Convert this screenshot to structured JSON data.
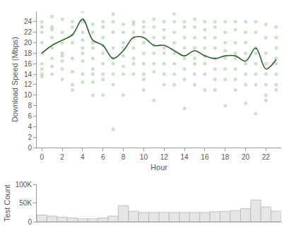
{
  "chart_data": [
    {
      "type": "scatter",
      "y_label": "Download Speed (Mbps)",
      "x_label": "Hour",
      "xlim": [
        -0.5,
        23.5
      ],
      "xticks": [
        0,
        2,
        4,
        6,
        8,
        10,
        12,
        14,
        16,
        18,
        20,
        22
      ],
      "ylim": [
        0,
        26
      ],
      "yticks": [
        0,
        2,
        4,
        6,
        8,
        10,
        12,
        14,
        16,
        18,
        20,
        22,
        24
      ],
      "grid": false,
      "series": [
        {
          "type": "scatter",
          "marker": "circle",
          "color": "#6aa86a",
          "x": [
            0,
            0,
            0,
            0,
            0,
            0,
            0,
            0,
            0,
            1,
            1,
            1,
            1,
            1,
            1,
            1,
            1,
            2,
            2,
            2,
            2,
            2,
            2,
            2,
            2,
            3,
            3,
            3,
            3,
            3,
            3,
            3,
            3,
            4,
            4,
            4,
            4,
            4,
            4,
            4,
            4,
            4,
            5,
            5,
            5,
            5,
            5,
            5,
            5,
            5,
            5,
            6,
            6,
            6,
            6,
            6,
            6,
            6,
            6,
            6,
            7,
            7,
            7,
            7,
            7,
            7,
            7,
            7,
            7,
            8,
            8,
            8,
            8,
            8,
            8,
            8,
            8,
            9,
            9,
            9,
            9,
            9,
            9,
            9,
            9,
            10,
            10,
            10,
            10,
            10,
            10,
            10,
            10,
            10,
            11,
            11,
            11,
            11,
            11,
            11,
            11,
            11,
            12,
            12,
            12,
            12,
            12,
            12,
            12,
            12,
            13,
            13,
            13,
            13,
            13,
            13,
            13,
            13,
            14,
            14,
            14,
            14,
            14,
            14,
            14,
            14,
            15,
            15,
            15,
            15,
            15,
            15,
            15,
            15,
            16,
            16,
            16,
            16,
            16,
            16,
            16,
            16,
            17,
            17,
            17,
            17,
            17,
            17,
            17,
            17,
            18,
            18,
            18,
            18,
            18,
            18,
            18,
            18,
            19,
            19,
            19,
            19,
            19,
            19,
            19,
            19,
            20,
            20,
            20,
            20,
            20,
            20,
            20,
            20,
            21,
            21,
            21,
            21,
            21,
            21,
            21,
            21,
            22,
            22,
            22,
            22,
            22,
            22,
            22,
            22,
            23,
            23,
            23,
            23,
            23,
            23,
            23,
            23
          ],
          "values": [
            24,
            23,
            22,
            20,
            18,
            16,
            15,
            14,
            13.5,
            25,
            23,
            22.5,
            21,
            19,
            17,
            15.5,
            14,
            24.5,
            22,
            20,
            18,
            17.5,
            16.5,
            15,
            13,
            24,
            23,
            21.5,
            20,
            17,
            14.5,
            12,
            11,
            26,
            24,
            22,
            20.5,
            19,
            18,
            16.5,
            14,
            12.5,
            23.5,
            22,
            20,
            19,
            17,
            15,
            14,
            12.5,
            10,
            24,
            23,
            21,
            19.5,
            18,
            16,
            14,
            10,
            13,
            25.5,
            24,
            22,
            19,
            17,
            16,
            14,
            12,
            3.5,
            23.5,
            22,
            20,
            19,
            17.5,
            15.5,
            14,
            10,
            24,
            23.5,
            22,
            21,
            19,
            17,
            16,
            14,
            24,
            23,
            22,
            20,
            18,
            16,
            14,
            13,
            11,
            24.5,
            23,
            21,
            19.5,
            18,
            16,
            14.5,
            9,
            24,
            22.5,
            21,
            19,
            18,
            16,
            14,
            12,
            25.5,
            24,
            22,
            20,
            18,
            16,
            14,
            12,
            24,
            23,
            21,
            19,
            17,
            15,
            13,
            7.5,
            24.5,
            23,
            21,
            19,
            17,
            16,
            14,
            12,
            24,
            22.5,
            21,
            19,
            17.5,
            16,
            14,
            11,
            24,
            23,
            21,
            19,
            17,
            15,
            13,
            11,
            24,
            22,
            20,
            18.5,
            17,
            15,
            13,
            8,
            24,
            22.5,
            20,
            18,
            17,
            15,
            13,
            11,
            24,
            22,
            20,
            18,
            16,
            14,
            12,
            8.5,
            24,
            22,
            19,
            18,
            16,
            14,
            12,
            6.5,
            23.5,
            21,
            18,
            16,
            14,
            12,
            10,
            9,
            23,
            21,
            19,
            17,
            16,
            14,
            12,
            11
          ]
        },
        {
          "type": "line",
          "line_style": "spline",
          "color": "#2d5e2d",
          "x": [
            0,
            1,
            2,
            3,
            4,
            5,
            6,
            7,
            8,
            9,
            10,
            11,
            12,
            13,
            14,
            15,
            16,
            17,
            18,
            19,
            20,
            21,
            22,
            23
          ],
          "values": [
            18,
            19.5,
            20.5,
            21.5,
            24.5,
            20.5,
            19.5,
            17,
            18.5,
            21,
            21,
            19.5,
            19.5,
            18.5,
            17.5,
            18.5,
            17.5,
            17,
            17.5,
            17.5,
            16.5,
            19,
            15,
            16.8
          ]
        }
      ]
    },
    {
      "type": "bar",
      "y_label": "Test Count",
      "color": "#e6e6e6",
      "tick_labels": "y",
      "grid": false,
      "x": [
        0,
        1,
        2,
        3,
        4,
        5,
        6,
        7,
        8,
        9,
        10,
        11,
        12,
        13,
        14,
        15,
        16,
        17,
        18,
        19,
        20,
        21,
        22,
        23
      ],
      "values": [
        18000,
        15000,
        12000,
        10000,
        8000,
        8000,
        10000,
        15000,
        43000,
        28000,
        25000,
        25000,
        25000,
        25000,
        25000,
        25000,
        25000,
        27000,
        28000,
        30000,
        35000,
        58000,
        40000,
        28000
      ],
      "xlim": [
        -0.5,
        23.5
      ],
      "ylim": [
        0,
        100000
      ],
      "yticks": [
        0,
        {
          "value": 50000,
          "label": "50K"
        },
        {
          "value": 100000,
          "label": "100K"
        }
      ]
    }
  ]
}
